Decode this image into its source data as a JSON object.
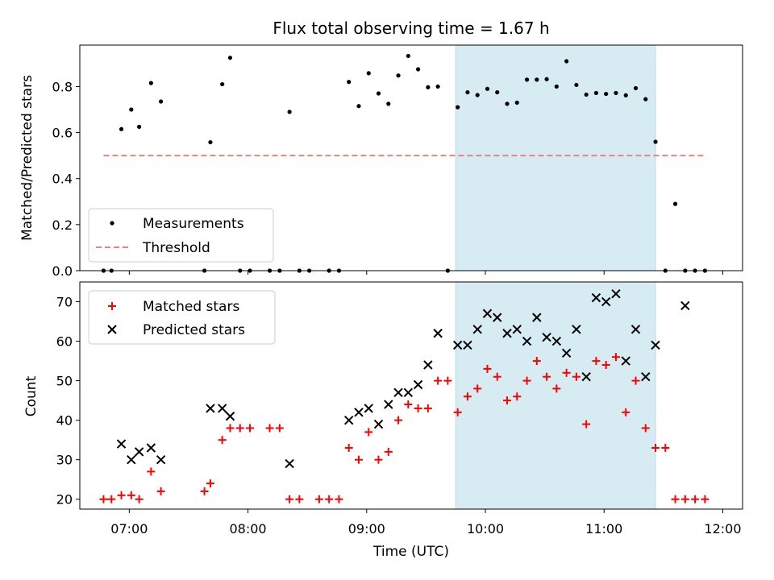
{
  "chart_data": [
    {
      "type": "scatter",
      "title": "Flux total observing time = 1.67 h",
      "ylabel": "Matched/Predicted stars",
      "xlim": [
        "06:35",
        "12:10"
      ],
      "ylim": [
        0,
        0.98
      ],
      "yticks": [
        "0.0",
        "0.2",
        "0.4",
        "0.6",
        "0.8"
      ],
      "highlight_span": [
        "09:45",
        "11:26"
      ],
      "highlight_color": "#add8e6",
      "grid": false,
      "legend": "lower-left",
      "threshold": {
        "name": "Threshold",
        "value": 0.5,
        "x_range": [
          "06:47",
          "11:51"
        ],
        "color": "#f08080"
      },
      "series": [
        {
          "name": "Measurements",
          "marker": "dot",
          "color": "#000000",
          "x": [
            "06:47",
            "06:51",
            "06:56",
            "07:01",
            "07:05",
            "07:11",
            "07:16",
            "07:38",
            "07:41",
            "07:47",
            "07:51",
            "07:56",
            "08:01",
            "08:11",
            "08:16",
            "08:21",
            "08:26",
            "08:31",
            "08:41",
            "08:46",
            "08:51",
            "08:56",
            "09:01",
            "09:06",
            "09:11",
            "09:16",
            "09:21",
            "09:26",
            "09:31",
            "09:36",
            "09:41",
            "09:46",
            "09:51",
            "09:56",
            "10:01",
            "10:06",
            "10:11",
            "10:16",
            "10:21",
            "10:26",
            "10:31",
            "10:36",
            "10:41",
            "10:46",
            "10:51",
            "10:56",
            "11:01",
            "11:06",
            "11:11",
            "11:16",
            "11:21",
            "11:26",
            "11:31",
            "11:36",
            "11:41",
            "11:46",
            "11:51"
          ],
          "y": [
            0,
            0,
            0.615,
            0.7,
            0.625,
            0.815,
            0.735,
            0,
            0.558,
            0.81,
            0.925,
            0,
            0,
            0,
            0,
            0.69,
            0,
            0,
            0,
            0,
            0.82,
            0.715,
            0.858,
            0.77,
            0.725,
            0.848,
            0.933,
            0.875,
            0.797,
            0.8,
            0,
            0.71,
            0.775,
            0.763,
            0.79,
            0.775,
            0.725,
            0.73,
            0.83,
            0.83,
            0.832,
            0.8,
            0.91,
            0.807,
            0.765,
            0.772,
            0.768,
            0.772,
            0.762,
            0.793,
            0.745,
            0.56,
            0,
            0.29,
            0,
            0,
            0
          ]
        }
      ]
    },
    {
      "type": "scatter",
      "xlabel": "Time (UTC)",
      "ylabel": "Count",
      "xlim": [
        "06:35",
        "12:10"
      ],
      "ylim": [
        17.5,
        75
      ],
      "xticks": [
        "07:00",
        "08:00",
        "09:00",
        "10:00",
        "11:00",
        "12:00"
      ],
      "yticks": [
        "20",
        "30",
        "40",
        "50",
        "60",
        "70"
      ],
      "highlight_span": [
        "09:45",
        "11:26"
      ],
      "grid": false,
      "legend": "upper-left",
      "series": [
        {
          "name": "Matched stars",
          "marker": "plus",
          "color": "#ff0000",
          "x": [
            "06:47",
            "06:51",
            "06:56",
            "07:01",
            "07:05",
            "07:11",
            "07:16",
            "07:38",
            "07:41",
            "07:47",
            "07:51",
            "07:56",
            "08:01",
            "08:11",
            "08:16",
            "08:21",
            "08:26",
            "08:36",
            "08:41",
            "08:46",
            "08:51",
            "08:56",
            "09:01",
            "09:06",
            "09:11",
            "09:16",
            "09:21",
            "09:26",
            "09:31",
            "09:36",
            "09:41",
            "09:46",
            "09:51",
            "09:56",
            "10:01",
            "10:06",
            "10:11",
            "10:16",
            "10:21",
            "10:26",
            "10:31",
            "10:36",
            "10:41",
            "10:46",
            "10:51",
            "10:56",
            "11:01",
            "11:06",
            "11:11",
            "11:16",
            "11:21",
            "11:26",
            "11:31",
            "11:36",
            "11:41",
            "11:46",
            "11:51"
          ],
          "y": [
            20,
            20,
            21,
            21,
            20,
            27,
            22,
            22,
            24,
            35,
            38,
            38,
            38,
            38,
            38,
            20,
            20,
            20,
            20,
            20,
            33,
            30,
            37,
            30,
            32,
            40,
            44,
            43,
            43,
            50,
            50,
            42,
            46,
            48,
            53,
            51,
            45,
            46,
            50,
            55,
            51,
            48,
            52,
            51,
            39,
            55,
            54,
            56,
            42,
            50,
            38,
            33,
            33,
            20,
            20,
            20,
            20
          ]
        },
        {
          "name": "Predicted stars",
          "marker": "x",
          "color": "#000000",
          "x": [
            "06:56",
            "07:01",
            "07:05",
            "07:11",
            "07:16",
            "07:41",
            "07:47",
            "07:51",
            "08:21",
            "08:51",
            "08:56",
            "09:01",
            "09:06",
            "09:11",
            "09:16",
            "09:21",
            "09:26",
            "09:31",
            "09:36",
            "09:46",
            "09:51",
            "09:56",
            "10:01",
            "10:06",
            "10:11",
            "10:16",
            "10:21",
            "10:26",
            "10:31",
            "10:36",
            "10:41",
            "10:46",
            "10:51",
            "10:56",
            "11:01",
            "11:06",
            "11:11",
            "11:16",
            "11:21",
            "11:26",
            "11:41"
          ],
          "y": [
            34,
            30,
            32,
            33,
            30,
            43,
            43,
            41,
            29,
            40,
            42,
            43,
            39,
            44,
            47,
            47,
            49,
            54,
            62,
            59,
            59,
            63,
            67,
            66,
            62,
            63,
            60,
            66,
            61,
            60,
            57,
            63,
            51,
            71,
            70,
            72,
            55,
            63,
            51,
            59,
            69
          ]
        }
      ]
    }
  ]
}
